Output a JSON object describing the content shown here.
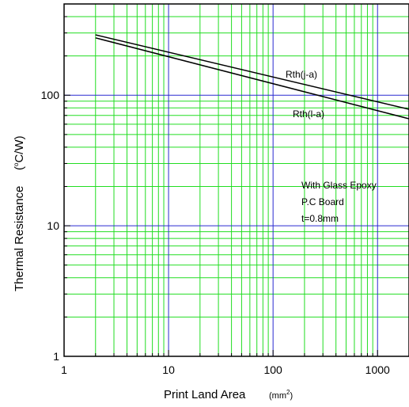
{
  "chart_data": {
    "type": "line",
    "x_scale": "log",
    "y_scale": "log",
    "xlim": [
      1,
      2000
    ],
    "ylim": [
      1,
      500
    ],
    "x_ticks": [
      {
        "value": 1,
        "label": "1"
      },
      {
        "value": 10,
        "label": "10"
      },
      {
        "value": 100,
        "label": "100"
      },
      {
        "value": 1000,
        "label": "1000"
      }
    ],
    "y_ticks": [
      {
        "value": 1,
        "label": "1"
      },
      {
        "value": 10,
        "label": "10"
      },
      {
        "value": 100,
        "label": "100"
      }
    ],
    "xlabel": "Print Land Area",
    "xlabel_unit": "(mm",
    "xlabel_unit_sup": "2",
    "xlabel_unit_end": ")",
    "ylabel": "Thermal Resistance",
    "ylabel_unit_open": "(",
    "ylabel_unit_sup": "o",
    "ylabel_unit_rest": "C/W)",
    "grid": true,
    "colors": {
      "major_grid": "#2a2ad0",
      "minor_grid": "#22dd22",
      "line": "#000000",
      "frame": "#000000"
    },
    "series": [
      {
        "name": "Rth(j-a)",
        "x": [
          2,
          2000
        ],
        "y": [
          290,
          78
        ]
      },
      {
        "name": "Rth(l-a)",
        "x": [
          2,
          2000
        ],
        "y": [
          275,
          66
        ]
      }
    ],
    "annotation": [
      "With Glass Epoxy",
      "P.C Board",
      "t=0.8mm"
    ]
  }
}
